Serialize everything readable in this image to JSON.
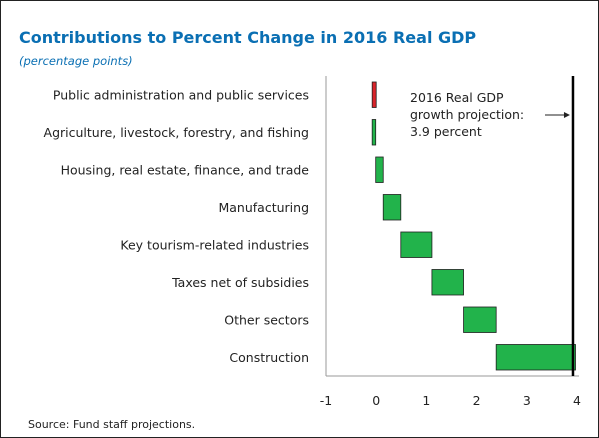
{
  "chart_data": {
    "type": "bar",
    "subtype": "waterfall",
    "orientation": "horizontal",
    "title": "Contributions to Percent Change in 2016 Real GDP",
    "subtitle": "(percentage points)",
    "source": "Source: Fund staff projections.",
    "categories": [
      "Public administration and public services",
      "Agriculture, livestock, forestry, and fishing",
      "Housing, real estate, finance, and trade",
      "Manufacturing",
      "Key tourism-related industries",
      "Taxes net of subsidies",
      "Other sectors",
      "Construction"
    ],
    "values": [
      -0.08,
      0.07,
      0.15,
      0.35,
      0.62,
      0.63,
      0.65,
      1.58
    ],
    "xlim": [
      -1,
      4
    ],
    "xticks": [
      "-1",
      "0",
      "1",
      "2",
      "3",
      "4"
    ],
    "grid": false,
    "colors": {
      "positive": "#22b34b",
      "negative": "#d9242a",
      "total_line": "#000000",
      "title": "#0a6fb3"
    },
    "total_line_value": 3.9,
    "annotation": {
      "lines": [
        "2016 Real GDP",
        "growth projection:",
        "3.9 percent"
      ]
    }
  }
}
